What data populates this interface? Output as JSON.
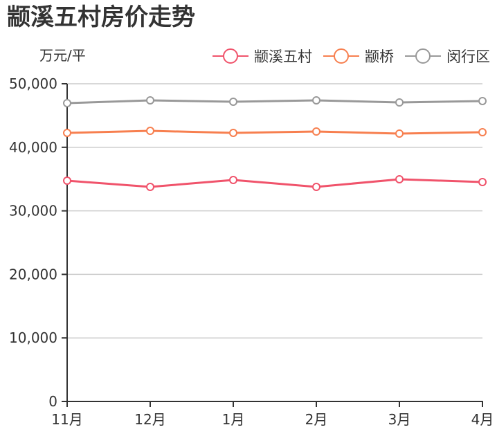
{
  "title": "颛溪五村房价走势",
  "unit_label": "万元/平",
  "colors": {
    "series_1": "#f0536b",
    "series_2": "#f77f4f",
    "series_3": "#999999",
    "grid": "#cccccc",
    "axis": "#333333"
  },
  "legend": [
    {
      "label": "颛溪五村",
      "color": "#f0536b"
    },
    {
      "label": "颛桥",
      "color": "#f77f4f"
    },
    {
      "label": "闵行区",
      "color": "#999999"
    }
  ],
  "chart_data": {
    "type": "line",
    "title": "颛溪五村房价走势",
    "xlabel": "",
    "ylabel": "万元/平",
    "categories": [
      "11月",
      "12月",
      "1月",
      "2月",
      "3月",
      "4月"
    ],
    "series": [
      {
        "name": "颛溪五村",
        "color": "#f0536b",
        "values": [
          34750,
          33770,
          34860,
          33770,
          34970,
          34530
        ]
      },
      {
        "name": "颛桥",
        "color": "#f77f4f",
        "values": [
          42270,
          42590,
          42270,
          42480,
          42160,
          42370
        ]
      },
      {
        "name": "闵行区",
        "color": "#999999",
        "values": [
          46950,
          47390,
          47170,
          47390,
          47060,
          47280
        ]
      }
    ],
    "ylim": [
      0,
      50000
    ],
    "yticks": [
      0,
      10000,
      20000,
      30000,
      40000,
      50000
    ],
    "ytick_labels": [
      "0",
      "10,000",
      "20,000",
      "30,000",
      "40,000",
      "50,000"
    ],
    "grid": true,
    "legend_position": "top-right"
  }
}
